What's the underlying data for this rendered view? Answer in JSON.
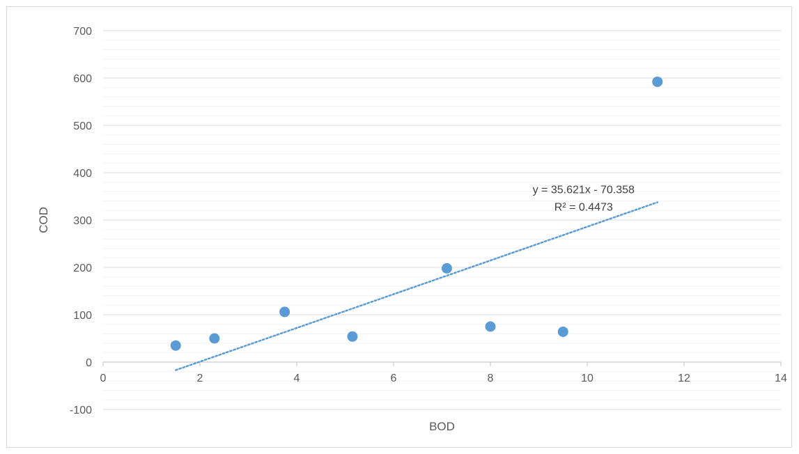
{
  "chart_data": {
    "type": "scatter",
    "title": "",
    "xlabel": "BOD",
    "ylabel": "COD",
    "xlim": [
      0,
      14
    ],
    "ylim": [
      -100,
      700
    ],
    "x_ticks": [
      0,
      2,
      4,
      6,
      8,
      10,
      12,
      14
    ],
    "y_ticks": [
      -100,
      0,
      100,
      200,
      300,
      400,
      500,
      600,
      700
    ],
    "y_minor_step": 20,
    "grid": true,
    "legend": "none",
    "point_color": "#5b9bd5",
    "trendline_color": "#5b9bd5",
    "series": [
      {
        "x": [
          1.5,
          2.3,
          3.75,
          5.15,
          7.1,
          8.0,
          9.5,
          11.45
        ],
        "y": [
          35,
          50,
          106,
          54,
          198,
          75,
          64,
          592
        ]
      }
    ],
    "trendline": {
      "type": "linear",
      "slope": 35.621,
      "intercept": -70.358,
      "x_range": [
        1.5,
        11.45
      ],
      "equation_label": "y = 35.621x - 70.358",
      "r2_label": "R² = 0.4473"
    }
  }
}
